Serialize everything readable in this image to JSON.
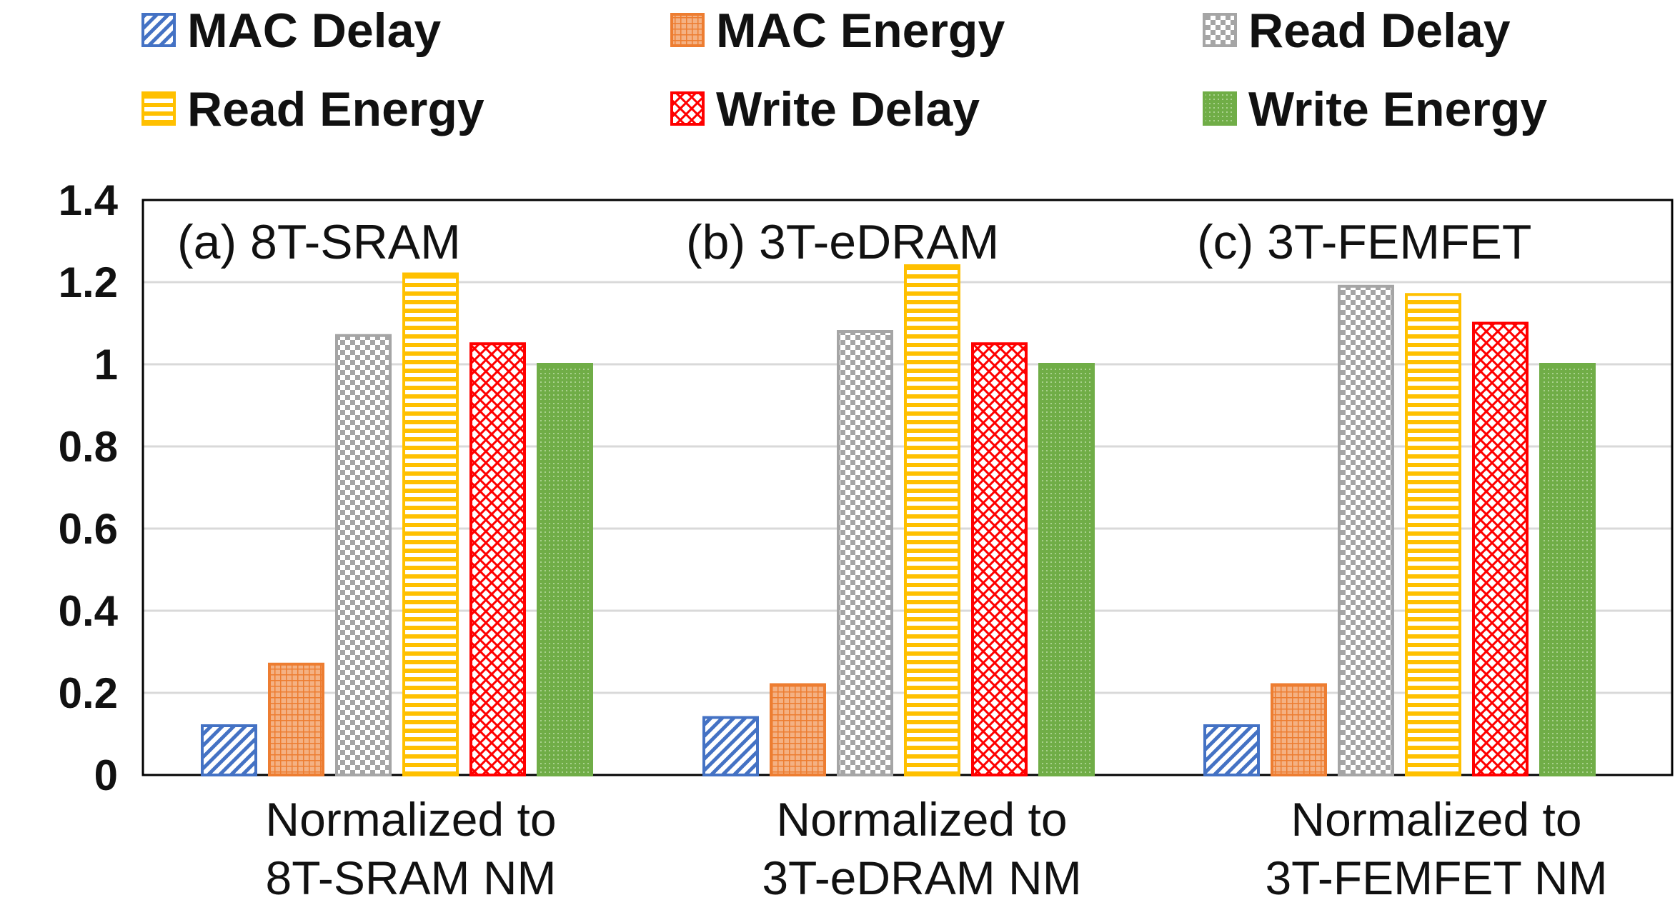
{
  "chart_data": {
    "type": "bar",
    "title": "",
    "xlabel": "",
    "ylabel": "",
    "ylim": [
      0,
      1.4
    ],
    "yticks": [
      "0",
      "0.2",
      "0.4",
      "0.6",
      "0.8",
      "1",
      "1.2",
      "1.4"
    ],
    "grid": true,
    "legend_position": "top",
    "groups": [
      {
        "panel": "(a) 8T-SRAM",
        "label_lines": [
          "Normalized to",
          "8T-SRAM NM"
        ]
      },
      {
        "panel": "(b) 3T-eDRAM",
        "label_lines": [
          "Normalized to",
          "3T-eDRAM NM"
        ]
      },
      {
        "panel": "(c) 3T-FEMFET",
        "label_lines": [
          "Normalized to",
          "3T-FEMFET NM"
        ]
      }
    ],
    "series": [
      {
        "name": "MAC Delay",
        "color": "#4472C4",
        "pattern": "diagonal",
        "values": [
          0.12,
          0.14,
          0.12
        ]
      },
      {
        "name": "MAC Energy",
        "color": "#ED7D31",
        "pattern": "grid",
        "values": [
          0.27,
          0.22,
          0.22
        ]
      },
      {
        "name": "Read Delay",
        "color": "#A5A5A5",
        "pattern": "checker",
        "values": [
          1.07,
          1.08,
          1.19
        ]
      },
      {
        "name": "Read Energy",
        "color": "#FFC000",
        "pattern": "horizontal",
        "values": [
          1.22,
          1.24,
          1.17
        ]
      },
      {
        "name": "Write Delay",
        "color": "#FF0000",
        "pattern": "crosshatch",
        "values": [
          1.05,
          1.05,
          1.1
        ]
      },
      {
        "name": "Write Energy",
        "color": "#70AD47",
        "pattern": "dots",
        "values": [
          1.0,
          1.0,
          1.0
        ]
      }
    ]
  }
}
